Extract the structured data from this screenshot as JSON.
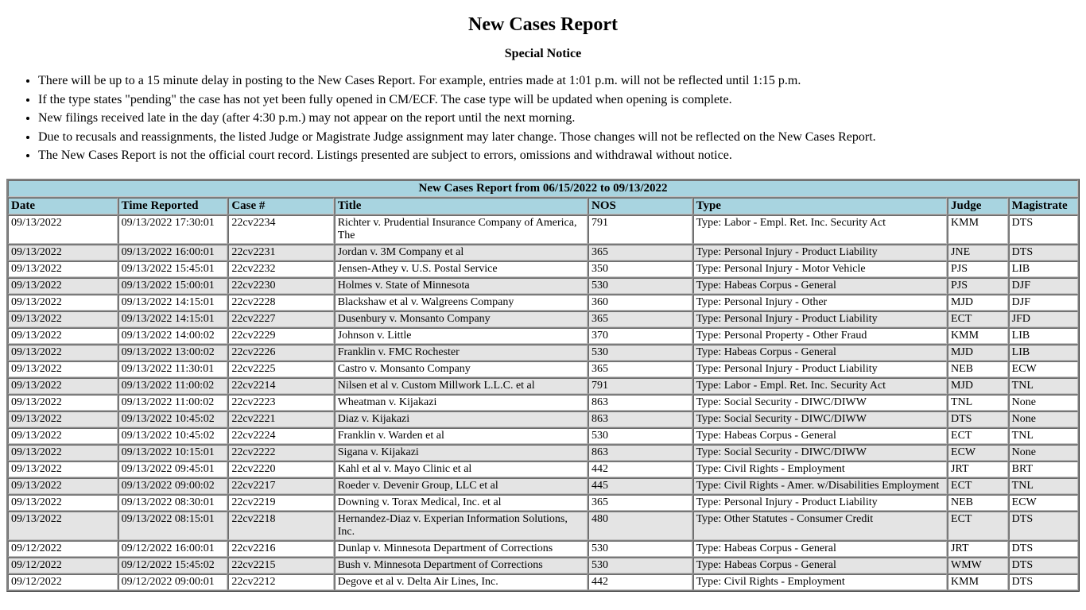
{
  "page_title": "New Cases Report",
  "notice_heading": "Special Notice",
  "notices": [
    "There will be up to a 15 minute delay in posting to the New Cases Report. For example, entries made at 1:01 p.m. will not be reflected until 1:15 p.m.",
    "If the type states \"pending\" the case has not yet been fully opened in CM/ECF. The case type will be updated when opening is complete.",
    "New filings received late in the day (after 4:30 p.m.) may not appear on the report until the next morning.",
    "Due to recusals and reassignments, the listed Judge or Magistrate Judge assignment may later change. Those changes will not be reflected on the New Cases Report.",
    "The New Cases Report is not the official court record. Listings presented are subject to errors, omissions and withdrawal without notice."
  ],
  "table_caption": "New Cases Report from 06/15/2022 to 09/13/2022",
  "columns": [
    "Date",
    "Time Reported",
    "Case #",
    "Title",
    "NOS",
    "Type",
    "Judge",
    "Magistrate"
  ],
  "rows": [
    [
      "09/13/2022",
      "09/13/2022 17:30:01",
      "22cv2234",
      "Richter v. Prudential Insurance Company of America, The",
      "791",
      "Type: Labor - Empl. Ret. Inc. Security Act",
      "KMM",
      "DTS"
    ],
    [
      "09/13/2022",
      "09/13/2022 16:00:01",
      "22cv2231",
      "Jordan v. 3M Company et al",
      "365",
      "Type: Personal Injury - Product Liability",
      "JNE",
      "DTS"
    ],
    [
      "09/13/2022",
      "09/13/2022 15:45:01",
      "22cv2232",
      "Jensen-Athey v. U.S. Postal Service",
      "350",
      "Type: Personal Injury - Motor Vehicle",
      "PJS",
      "LIB"
    ],
    [
      "09/13/2022",
      "09/13/2022 15:00:01",
      "22cv2230",
      "Holmes v. State of Minnesota",
      "530",
      "Type: Habeas Corpus - General",
      "PJS",
      "DJF"
    ],
    [
      "09/13/2022",
      "09/13/2022 14:15:01",
      "22cv2228",
      "Blackshaw et al v. Walgreens Company",
      "360",
      "Type: Personal Injury - Other",
      "MJD",
      "DJF"
    ],
    [
      "09/13/2022",
      "09/13/2022 14:15:01",
      "22cv2227",
      "Dusenbury v. Monsanto Company",
      "365",
      "Type: Personal Injury - Product Liability",
      "ECT",
      "JFD"
    ],
    [
      "09/13/2022",
      "09/13/2022 14:00:02",
      "22cv2229",
      "Johnson v. Little",
      "370",
      "Type: Personal Property - Other Fraud",
      "KMM",
      "LIB"
    ],
    [
      "09/13/2022",
      "09/13/2022 13:00:02",
      "22cv2226",
      "Franklin v. FMC Rochester",
      "530",
      "Type: Habeas Corpus - General",
      "MJD",
      "LIB"
    ],
    [
      "09/13/2022",
      "09/13/2022 11:30:01",
      "22cv2225",
      "Castro v. Monsanto Company",
      "365",
      "Type: Personal Injury - Product Liability",
      "NEB",
      "ECW"
    ],
    [
      "09/13/2022",
      "09/13/2022 11:00:02",
      "22cv2214",
      "Nilsen et al v. Custom Millwork L.L.C. et al",
      "791",
      "Type: Labor - Empl. Ret. Inc. Security Act",
      "MJD",
      "TNL"
    ],
    [
      "09/13/2022",
      "09/13/2022 11:00:02",
      "22cv2223",
      "Wheatman v. Kijakazi",
      "863",
      "Type: Social Security - DIWC/DIWW",
      "TNL",
      "None"
    ],
    [
      "09/13/2022",
      "09/13/2022 10:45:02",
      "22cv2221",
      "Diaz v. Kijakazi",
      "863",
      "Type: Social Security - DIWC/DIWW",
      "DTS",
      "None"
    ],
    [
      "09/13/2022",
      "09/13/2022 10:45:02",
      "22cv2224",
      "Franklin v. Warden et al",
      "530",
      "Type: Habeas Corpus - General",
      "ECT",
      "TNL"
    ],
    [
      "09/13/2022",
      "09/13/2022 10:15:01",
      "22cv2222",
      "Sigana v. Kijakazi",
      "863",
      "Type: Social Security - DIWC/DIWW",
      "ECW",
      "None"
    ],
    [
      "09/13/2022",
      "09/13/2022 09:45:01",
      "22cv2220",
      "Kahl et al v. Mayo Clinic et al",
      "442",
      "Type: Civil Rights - Employment",
      "JRT",
      "BRT"
    ],
    [
      "09/13/2022",
      "09/13/2022 09:00:02",
      "22cv2217",
      "Roeder v. Devenir Group, LLC et al",
      "445",
      "Type: Civil Rights - Amer. w/Disabilities Employment",
      "ECT",
      "TNL"
    ],
    [
      "09/13/2022",
      "09/13/2022 08:30:01",
      "22cv2219",
      "Downing v. Torax Medical, Inc. et al",
      "365",
      "Type: Personal Injury - Product Liability",
      "NEB",
      "ECW"
    ],
    [
      "09/13/2022",
      "09/13/2022 08:15:01",
      "22cv2218",
      "Hernandez-Diaz v. Experian Information Solutions, Inc.",
      "480",
      "Type: Other Statutes - Consumer Credit",
      "ECT",
      "DTS"
    ],
    [
      "09/12/2022",
      "09/12/2022 16:00:01",
      "22cv2216",
      "Dunlap v. Minnesota Department of Corrections",
      "530",
      "Type: Habeas Corpus - General",
      "JRT",
      "DTS"
    ],
    [
      "09/12/2022",
      "09/12/2022 15:45:02",
      "22cv2215",
      "Bush v. Minnesota Department of Corrections",
      "530",
      "Type: Habeas Corpus - General",
      "WMW",
      "DTS"
    ],
    [
      "09/12/2022",
      "09/12/2022 09:00:01",
      "22cv2212",
      "Degove et al v. Delta Air Lines, Inc.",
      "442",
      "Type: Civil Rights - Employment",
      "KMM",
      "DTS"
    ]
  ],
  "colors": {
    "header_bg": "#a8d4e0",
    "row_even_bg": "#ffffff",
    "row_odd_bg": "#e4e4e4",
    "border": "#808080"
  }
}
